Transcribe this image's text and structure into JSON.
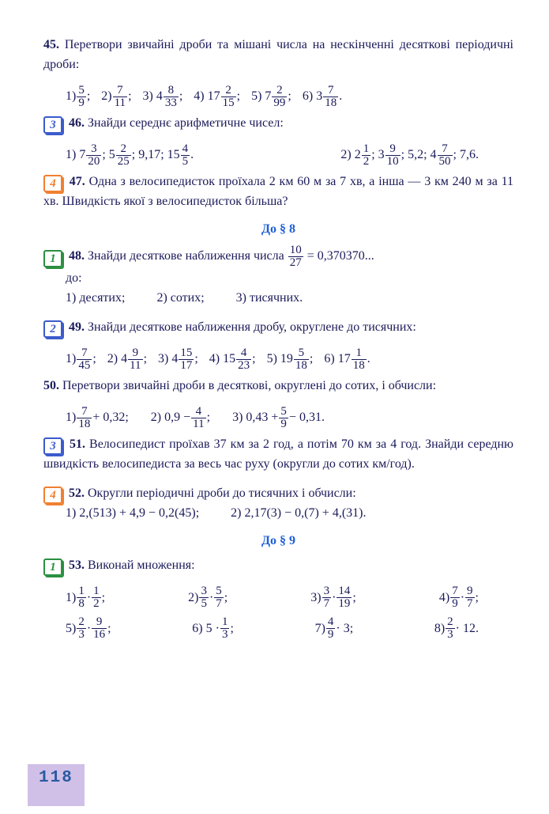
{
  "p45": {
    "num": "45.",
    "text": "Перетвори звичайні дроби та мішані числа на нескінченні десяткові періодичні дроби:",
    "items": [
      {
        "label": "1)",
        "whole": "",
        "n": "5",
        "d": "9",
        "after": ";"
      },
      {
        "label": "2)",
        "whole": "",
        "n": "7",
        "d": "11",
        "after": ";"
      },
      {
        "label": "3)",
        "whole": "4",
        "n": "8",
        "d": "33",
        "after": ";"
      },
      {
        "label": "4)",
        "whole": "17",
        "n": "2",
        "d": "15",
        "after": ";"
      },
      {
        "label": "5)",
        "whole": "7",
        "n": "2",
        "d": "99",
        "after": ";"
      },
      {
        "label": "6)",
        "whole": "3",
        "n": "7",
        "d": "18",
        "after": "."
      }
    ]
  },
  "p46": {
    "badge": "3",
    "num": "46.",
    "text": "Знайди середнє арифметичне чисел:",
    "lines": [
      "1) 7{3/20}; 5{2/25}; 9,17; 15{4/5}.",
      "2) 2{1/2}; 3{9/10}; 5,2; 4{7/50}; 7,6."
    ]
  },
  "p47": {
    "badge": "4",
    "num": "47.",
    "text": "Одна з велосипедисток проїхала 2 км 60 м за 7 хв, а інша — 3 км 240 м за 11 хв. Швидкість якої з велосипедисток більша?"
  },
  "sec8": "До § 8",
  "p48": {
    "badge": "1",
    "num": "48.",
    "pre": "Знайди десяткове наближення числа ",
    "frac": {
      "n": "10",
      "d": "27"
    },
    "post": " = 0,370370...",
    "do": "до:",
    "opts": [
      "1) десятих;",
      "2) сотих;",
      "3) тисячних."
    ]
  },
  "p49": {
    "badge": "2",
    "num": "49.",
    "text": "Знайди десяткове наближення дробу, округлене до тисячних:",
    "items": [
      {
        "label": "1)",
        "whole": "",
        "n": "7",
        "d": "45",
        "after": ";"
      },
      {
        "label": "2)",
        "whole": "4",
        "n": "9",
        "d": "11",
        "after": ";"
      },
      {
        "label": "3)",
        "whole": "4",
        "n": "15",
        "d": "17",
        "after": ";"
      },
      {
        "label": "4)",
        "whole": "15",
        "n": "4",
        "d": "23",
        "after": ";"
      },
      {
        "label": "5)",
        "whole": "19",
        "n": "5",
        "d": "18",
        "after": ";"
      },
      {
        "label": "6)",
        "whole": "17",
        "n": "1",
        "d": "18",
        "after": "."
      }
    ]
  },
  "p50": {
    "num": "50.",
    "text": "Перетвори звичайні дроби в десяткові, округлені до сотих, і обчисли:",
    "exprs": [
      {
        "label": "1)",
        "frac": {
          "n": "7",
          "d": "18"
        },
        "rest": " + 0,32;"
      },
      {
        "label": "2)",
        "pre": "0,9 − ",
        "frac": {
          "n": "4",
          "d": "11"
        },
        "rest": ";"
      },
      {
        "label": "3)",
        "pre": "0,43 + ",
        "frac": {
          "n": "5",
          "d": "9"
        },
        "rest": " − 0,31."
      }
    ]
  },
  "p51": {
    "badge": "3",
    "num": "51.",
    "text": "Велосипедист проїхав 37 км за 2 год, а потім 70 км за 4 год. Знайди середню швидкість велосипедиста за весь час руху (округли до сотих км/год)."
  },
  "p52": {
    "badge": "4",
    "num": "52.",
    "text": "Округли періодичні дроби до тисячних і обчисли:",
    "a": "1) 2,(513) + 4,9 − 0,2(45);",
    "b": "2) 2,17(3) − 0,(7) + 4,(31)."
  },
  "sec9": "До § 9",
  "p53": {
    "badge": "1",
    "num": "53.",
    "text": "Виконай множення:",
    "row1": [
      {
        "label": "1)",
        "a": {
          "n": "1",
          "d": "8"
        },
        "b": {
          "n": "1",
          "d": "2"
        },
        "after": ";"
      },
      {
        "label": "2)",
        "a": {
          "n": "3",
          "d": "5"
        },
        "b": {
          "n": "5",
          "d": "7"
        },
        "after": ";"
      },
      {
        "label": "3)",
        "a": {
          "n": "3",
          "d": "7"
        },
        "b": {
          "n": "14",
          "d": "19"
        },
        "after": ";"
      },
      {
        "label": "4)",
        "a": {
          "n": "7",
          "d": "9"
        },
        "b": {
          "n": "9",
          "d": "7"
        },
        "after": ";"
      }
    ],
    "row2": [
      {
        "label": "5)",
        "a": {
          "n": "2",
          "d": "3"
        },
        "b": {
          "n": "9",
          "d": "16"
        },
        "after": ";"
      },
      {
        "label": "6)",
        "pre": "5 · ",
        "a": {
          "n": "1",
          "d": "3"
        },
        "after": ";"
      },
      {
        "label": "7)",
        "a": {
          "n": "4",
          "d": "9"
        },
        "post": " · 3",
        "after": ";"
      },
      {
        "label": "8)",
        "a": {
          "n": "2",
          "d": "3"
        },
        "post": " · 12",
        "after": "."
      }
    ]
  },
  "page": "118",
  "colors": {
    "text": "#1a1a5a",
    "blue": "#3b5bcc",
    "orange": "#f08030",
    "green": "#2a9040",
    "section": "#1e5fd8",
    "pagebg": "#d0c0e8"
  }
}
